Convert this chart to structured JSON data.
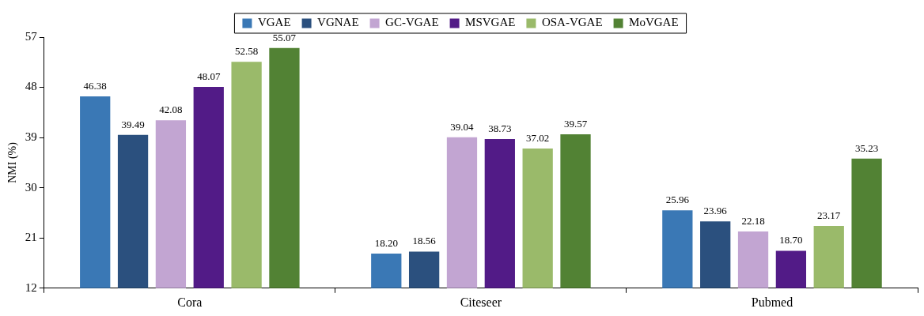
{
  "chart_data": {
    "type": "bar",
    "ylabel": "NMI (%)",
    "categories": [
      "Cora",
      "Citeseer",
      "Pubmed"
    ],
    "series": [
      {
        "name": "VGAE",
        "color": "#3a78b5",
        "values": [
          46.38,
          18.2,
          25.96
        ],
        "value_labels": [
          "46.38",
          "18.20",
          "25.96"
        ]
      },
      {
        "name": "VGNAE",
        "color": "#2b507e",
        "values": [
          39.49,
          18.56,
          23.96
        ],
        "value_labels": [
          "39.49",
          "18.56",
          "23.96"
        ]
      },
      {
        "name": "GC-VGAE",
        "color": "#c2a5d2",
        "values": [
          42.08,
          39.04,
          22.18
        ],
        "value_labels": [
          "42.08",
          "39.04",
          "22.18"
        ]
      },
      {
        "name": "MSVGAE",
        "color": "#521b87",
        "values": [
          48.07,
          38.73,
          18.7
        ],
        "value_labels": [
          "48.07",
          "38.73",
          "18.70"
        ]
      },
      {
        "name": "OSA-VGAE",
        "color": "#9aba6a",
        "values": [
          52.58,
          37.02,
          23.17
        ],
        "value_labels": [
          "52.58",
          "37.02",
          "23.17"
        ]
      },
      {
        "name": "MoVGAE",
        "color": "#528234",
        "values": [
          55.07,
          39.57,
          35.23
        ],
        "value_labels": [
          "55.07",
          "39.57",
          "35.23"
        ]
      }
    ],
    "ylim": [
      12,
      57
    ],
    "yticks": [
      12,
      21,
      30,
      39,
      48,
      57
    ],
    "grid": false,
    "legend": "top"
  }
}
